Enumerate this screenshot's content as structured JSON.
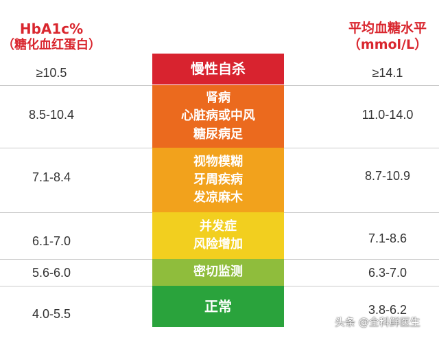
{
  "header": {
    "left_line1": "HbA1c%",
    "left_line2": "（糖化血红蛋白）",
    "right_line1": "平均血糖水平",
    "right_line2": "（mmol/L）"
  },
  "rows": [
    {
      "hba1c": "≥10.5",
      "glucose": "≥14.1",
      "labels": [
        "慢性自杀"
      ],
      "color": "#d8232f"
    },
    {
      "hba1c": "8.5-10.4",
      "glucose": "11.0-14.0",
      "labels": [
        "肾病",
        "心脏病或中风",
        "糖尿病足"
      ],
      "color": "#eb6a1e"
    },
    {
      "hba1c": "7.1-8.4",
      "glucose": "8.7-10.9",
      "labels": [
        "视物模糊",
        "牙周疾病",
        "发凉麻木"
      ],
      "color": "#f2a21c"
    },
    {
      "hba1c": "6.1-7.0",
      "glucose": "7.1-8.6",
      "labels": [
        "并发症",
        "风险增加"
      ],
      "color": "#f2cf1f"
    },
    {
      "hba1c": "5.6-6.0",
      "glucose": "6.3-7.0",
      "labels": [
        "密切监测"
      ],
      "color": "#8fbd3c"
    },
    {
      "hba1c": "4.0-5.5",
      "glucose": "3.8-6.2",
      "labels": [
        "正常"
      ],
      "color": "#2aa33c"
    }
  ],
  "watermark": "头条 @全科鲜医生"
}
